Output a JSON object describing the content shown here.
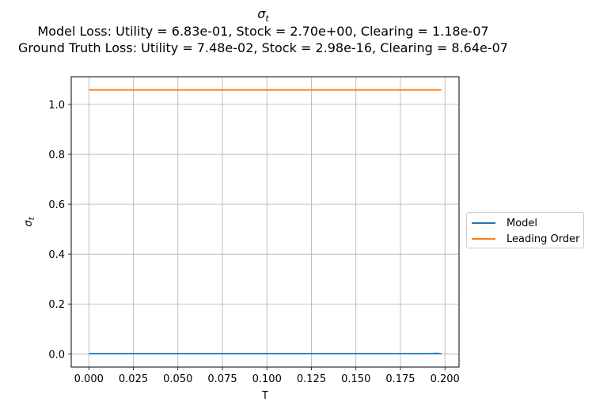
{
  "title": {
    "main": "σt",
    "line1": "Model Loss: Utility = 6.83e-01, Stock = 2.70e+00, Clearing = 1.18e-07",
    "line2": "Ground Truth Loss: Utility = 7.48e-02, Stock = 2.98e-16, Clearing = 8.64e-07"
  },
  "chart_data": {
    "type": "line",
    "xlabel": "T",
    "ylabel": "σt",
    "xlim": [
      -0.0099,
      0.2079
    ],
    "ylim": [
      -0.0529,
      1.1109
    ],
    "xticks": [
      0.0,
      0.025,
      0.05,
      0.075,
      0.1,
      0.125,
      0.15,
      0.175,
      0.2
    ],
    "xtick_labels": [
      "0.000",
      "0.025",
      "0.050",
      "0.075",
      "0.100",
      "0.125",
      "0.150",
      "0.175",
      "0.200"
    ],
    "yticks": [
      0.0,
      0.2,
      0.4,
      0.6,
      0.8,
      1.0
    ],
    "ytick_labels": [
      "0.0",
      "0.2",
      "0.4",
      "0.6",
      "0.8",
      "1.0"
    ],
    "grid": true,
    "legend_position": "center-right outside",
    "series": [
      {
        "name": "Model",
        "color": "#1f77b4",
        "x": [
          0.0,
          0.025,
          0.05,
          0.075,
          0.1,
          0.125,
          0.15,
          0.175,
          0.19,
          0.195,
          0.198
        ],
        "y": [
          0.001,
          0.001,
          0.001,
          0.001,
          0.001,
          0.001,
          0.001,
          0.001,
          0.001,
          0.002,
          0.001
        ]
      },
      {
        "name": "Leading Order",
        "color": "#ff7f0e",
        "x": [
          0.0,
          0.198
        ],
        "y": [
          1.058,
          1.058
        ]
      }
    ]
  }
}
